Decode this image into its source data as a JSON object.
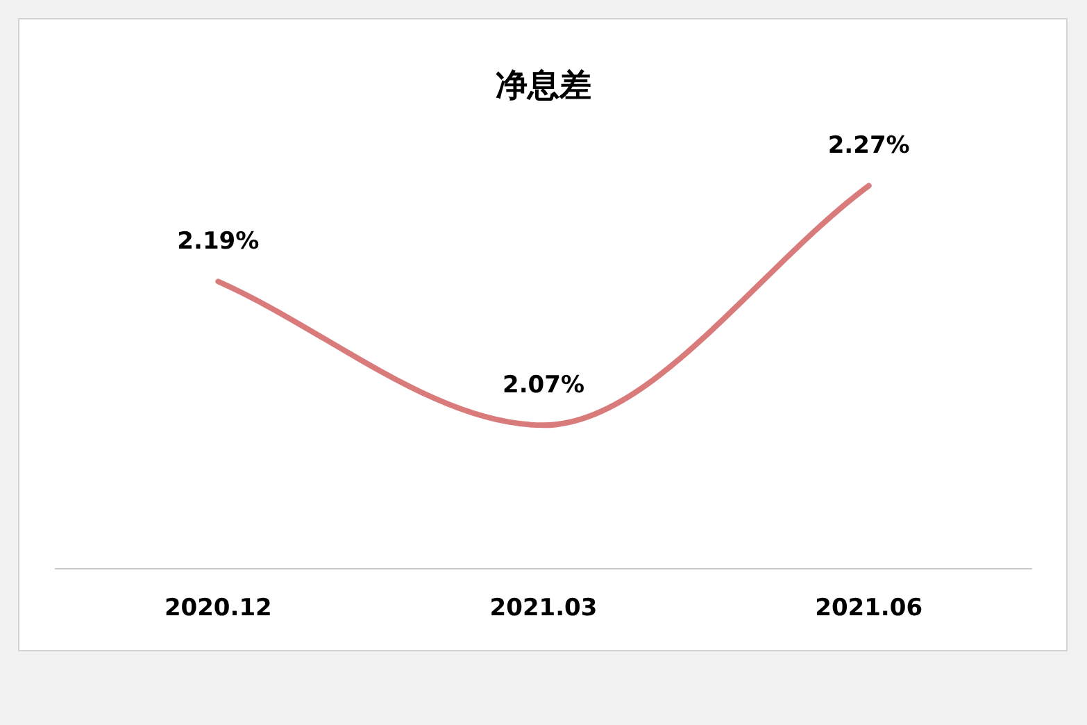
{
  "chart_data": {
    "type": "line",
    "title": "净息差",
    "categories": [
      "2020.12",
      "2021.03",
      "2021.06"
    ],
    "values": [
      2.19,
      2.07,
      2.27
    ],
    "color": "#d97a7b",
    "value_labels": [
      "2.19%",
      "2.07%",
      "2.27%"
    ]
  }
}
